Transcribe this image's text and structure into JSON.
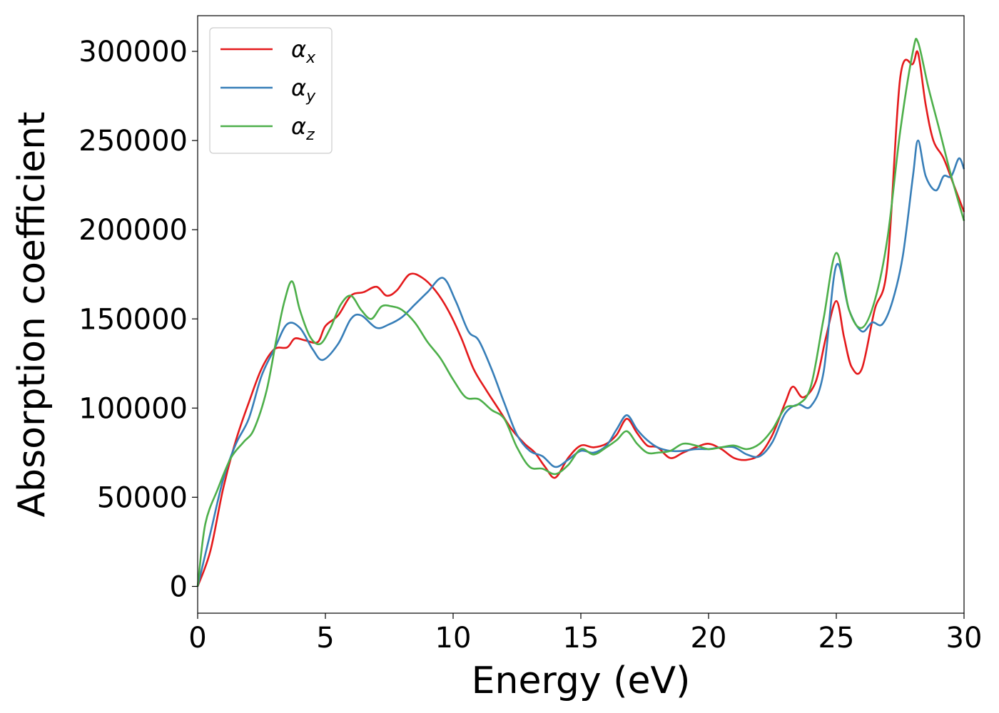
{
  "chart_data": {
    "type": "line",
    "title": "",
    "xlabel": "Energy (eV)",
    "ylabel": "Absorption coefficient",
    "xlim": [
      0,
      30
    ],
    "ylim": [
      -15000,
      320000
    ],
    "xticks": [
      0,
      5,
      10,
      15,
      20,
      25,
      30
    ],
    "yticks": [
      0,
      50000,
      100000,
      150000,
      200000,
      250000,
      300000
    ],
    "grid": false,
    "legend_position": "top-left",
    "series": [
      {
        "name": "α",
        "subscript": "x",
        "color": "#e41a1c",
        "x": [
          0,
          0.5,
          1,
          1.5,
          2,
          2.5,
          3,
          3.5,
          3.8,
          4.2,
          4.7,
          5,
          5.5,
          6,
          6.5,
          7,
          7.4,
          7.8,
          8.3,
          8.8,
          9.3,
          9.8,
          10.3,
          10.8,
          11.3,
          11.8,
          12.3,
          12.8,
          13.2,
          13.6,
          14,
          14.5,
          15,
          15.5,
          16,
          16.4,
          16.8,
          17.2,
          17.6,
          18,
          18.5,
          19,
          19.5,
          20,
          20.5,
          21,
          21.5,
          22,
          22.5,
          23,
          23.3,
          23.7,
          24.2,
          24.6,
          25,
          25.3,
          25.6,
          26,
          26.5,
          27,
          27.5,
          28,
          28.2,
          28.5,
          28.8,
          29.2,
          29.6,
          30
        ],
        "y": [
          0,
          20000,
          55000,
          82000,
          103000,
          122000,
          133000,
          134000,
          139000,
          138000,
          137000,
          146000,
          152000,
          163000,
          165000,
          168000,
          163000,
          166000,
          175000,
          173000,
          166000,
          155000,
          140000,
          122000,
          110000,
          99000,
          88000,
          80000,
          75000,
          67000,
          61000,
          72000,
          79000,
          78000,
          80000,
          85000,
          94000,
          86000,
          79000,
          78000,
          72000,
          75000,
          78000,
          80000,
          77000,
          72000,
          71000,
          74000,
          85000,
          103000,
          112000,
          106000,
          115000,
          140000,
          160000,
          140000,
          123000,
          122000,
          155000,
          180000,
          285000,
          293000,
          299000,
          270000,
          250000,
          240000,
          225000,
          210000
        ]
      },
      {
        "name": "α",
        "subscript": "y",
        "color": "#377eb8",
        "x": [
          0,
          0.5,
          1,
          1.5,
          2,
          2.5,
          3,
          3.5,
          4,
          4.5,
          4.9,
          5.5,
          6,
          6.4,
          7,
          7.5,
          8,
          8.5,
          9,
          9.6,
          10.1,
          10.6,
          11,
          11.5,
          12,
          12.5,
          13,
          13.5,
          14,
          14.5,
          15,
          15.5,
          16,
          16.4,
          16.8,
          17.2,
          17.6,
          18,
          18.5,
          19,
          19.5,
          20,
          20.5,
          21,
          21.5,
          22,
          22.5,
          23,
          23.5,
          24,
          24.5,
          25,
          25.5,
          26,
          26.4,
          26.8,
          27.2,
          27.6,
          28,
          28.2,
          28.5,
          28.9,
          29.2,
          29.5,
          29.8,
          30
        ],
        "y": [
          0,
          30000,
          60000,
          80000,
          94000,
          118000,
          133000,
          147000,
          145000,
          133000,
          127000,
          136000,
          150000,
          152000,
          145000,
          147000,
          151000,
          158000,
          165000,
          173000,
          160000,
          143000,
          138000,
          122000,
          103000,
          85000,
          76000,
          73000,
          67000,
          71000,
          76000,
          75000,
          79000,
          88000,
          96000,
          88000,
          82000,
          78000,
          76000,
          76000,
          77000,
          77000,
          78000,
          78000,
          74000,
          73000,
          81000,
          97000,
          102000,
          101000,
          120000,
          180000,
          155000,
          143000,
          148000,
          147000,
          160000,
          185000,
          230000,
          250000,
          230000,
          222000,
          230000,
          230000,
          240000,
          234000
        ]
      },
      {
        "name": "α",
        "subscript": "z",
        "color": "#4daf4a",
        "x": [
          0,
          0.3,
          0.8,
          1.3,
          1.8,
          2.2,
          2.7,
          3.1,
          3.4,
          3.7,
          4,
          4.4,
          4.8,
          5.2,
          5.6,
          6,
          6.4,
          6.8,
          7.2,
          7.6,
          8,
          8.5,
          9,
          9.5,
          10,
          10.5,
          11,
          11.5,
          12,
          12.5,
          13,
          13.5,
          14,
          14.5,
          15,
          15.5,
          16,
          16.4,
          16.8,
          17.2,
          17.6,
          18,
          18.5,
          19,
          19.5,
          20,
          20.5,
          21,
          21.5,
          22,
          22.5,
          23,
          23.5,
          24,
          24.5,
          25,
          25.5,
          26,
          26.5,
          27,
          27.5,
          28,
          28.2,
          28.6,
          29,
          29.5,
          30
        ],
        "y": [
          0,
          35000,
          55000,
          72000,
          81000,
          88000,
          110000,
          140000,
          160000,
          171000,
          155000,
          140000,
          136000,
          145000,
          158000,
          163000,
          155000,
          150000,
          157000,
          157000,
          155000,
          148000,
          137000,
          128000,
          116000,
          106000,
          105000,
          99000,
          94000,
          78000,
          67000,
          66000,
          63000,
          68000,
          77000,
          74000,
          78000,
          82000,
          87000,
          80000,
          75000,
          75000,
          76000,
          80000,
          79000,
          77000,
          78000,
          79000,
          77000,
          80000,
          88000,
          100000,
          102000,
          112000,
          150000,
          187000,
          155000,
          145000,
          160000,
          195000,
          255000,
          300000,
          305000,
          280000,
          258000,
          230000,
          205000
        ]
      }
    ]
  }
}
